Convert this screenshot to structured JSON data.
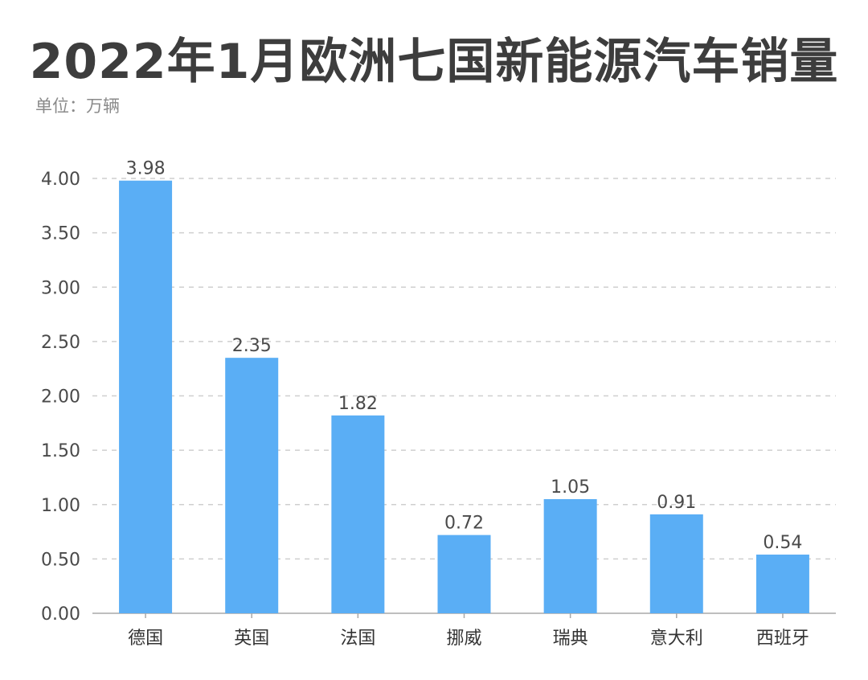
{
  "header": {
    "title": "2022年1月欧洲七国新能源汽车销量",
    "unit": "单位：万辆"
  },
  "chart_data": {
    "type": "bar",
    "title": "2022年1月欧洲七国新能源汽车销量",
    "categories": [
      "德国",
      "英国",
      "法国",
      "挪威",
      "瑞典",
      "意大利",
      "西班牙"
    ],
    "values": [
      3.98,
      2.35,
      1.82,
      0.72,
      1.05,
      0.91,
      0.54
    ],
    "value_labels": [
      "3.98",
      "2.35",
      "1.82",
      "0.72",
      "1.05",
      "0.91",
      "0.54"
    ],
    "y_ticks": [
      "0.00",
      "0.50",
      "1.00",
      "1.50",
      "2.00",
      "2.50",
      "3.00",
      "3.50",
      "4.00"
    ],
    "ylim": [
      0,
      4
    ],
    "grid": true,
    "bar_color": "#5aaef5",
    "legend": "none"
  }
}
